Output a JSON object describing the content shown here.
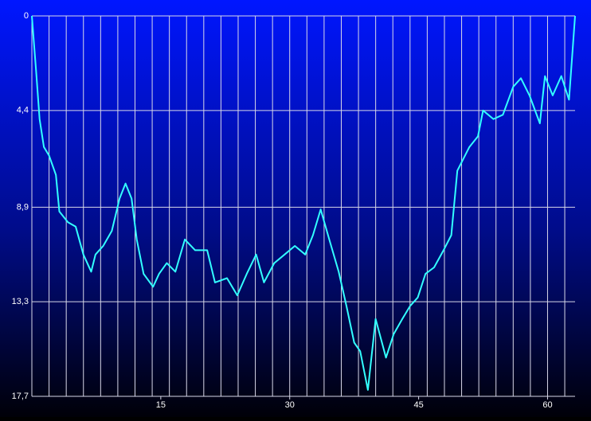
{
  "chart_data": {
    "type": "line",
    "x": [
      0,
      0.5,
      0.9,
      1.4,
      2.0,
      2.8,
      3.2,
      4.2,
      5.1,
      6.0,
      6.9,
      7.4,
      8.3,
      9.3,
      10.2,
      10.9,
      11.6,
      12.2,
      13.0,
      14.1,
      14.8,
      15.7,
      16.7,
      17.8,
      19.0,
      20.4,
      21.3,
      22.7,
      23.9,
      25.0,
      26.1,
      27.0,
      28.2,
      29.4,
      30.6,
      31.8,
      32.7,
      33.6,
      34.6,
      35.7,
      36.6,
      37.5,
      38.2,
      39.1,
      40.0,
      41.2,
      42.1,
      43.1,
      44.0,
      44.9,
      45.8,
      46.8,
      47.9,
      48.8,
      49.5,
      50.9,
      51.9,
      52.5,
      53.7,
      54.8,
      56.0,
      56.9,
      57.9,
      59.1,
      59.7,
      60.6,
      61.6,
      62.5,
      63.2
    ],
    "values": [
      0,
      2.6,
      4.8,
      6.1,
      6.5,
      7.4,
      9.1,
      9.6,
      9.8,
      11.1,
      11.9,
      11.1,
      10.7,
      10.0,
      8.5,
      7.8,
      8.5,
      10.4,
      12.0,
      12.6,
      12.0,
      11.5,
      11.9,
      10.4,
      10.9,
      10.9,
      12.4,
      12.2,
      13.0,
      12.0,
      11.1,
      12.4,
      11.5,
      11.1,
      10.7,
      11.1,
      10.2,
      9.0,
      10.4,
      11.9,
      13.5,
      15.2,
      15.6,
      17.4,
      14.1,
      15.9,
      14.8,
      14.1,
      13.5,
      13.1,
      12.0,
      11.7,
      10.9,
      10.2,
      7.2,
      6.1,
      5.6,
      4.4,
      4.8,
      4.6,
      3.3,
      2.9,
      3.7,
      5.0,
      2.8,
      3.7,
      2.8,
      3.9,
      0
    ],
    "color": "#33ffff",
    "xlim": [
      0,
      63.2
    ],
    "xticks": [
      15,
      30,
      45,
      60
    ],
    "x_grid_step": 2,
    "ylim": [
      0,
      17.7
    ],
    "y_inverted": true,
    "yticks": [
      0,
      {
        "value": 4.4,
        "label": "4,4"
      },
      {
        "value": 8.9,
        "label": "8,9"
      },
      {
        "value": 13.3,
        "label": "13,3"
      },
      {
        "value": 17.7,
        "label": "17,7"
      }
    ],
    "grid": true
  }
}
